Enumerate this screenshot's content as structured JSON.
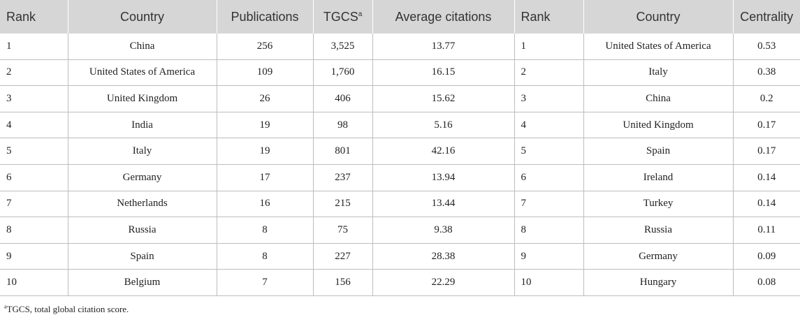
{
  "table": {
    "headers": {
      "rank1": "Rank",
      "country1": "Country",
      "publications": "Publications",
      "tgcs": "TGCS",
      "tgcs_note": "a",
      "avg_citations": "Average citations",
      "rank2": "Rank",
      "country2": "Country",
      "centrality": "Centrality"
    },
    "rows": [
      {
        "rank1": "1",
        "country1": "China",
        "publications": "256",
        "tgcs": "3,525",
        "avg": "13.77",
        "rank2": "1",
        "country2": "United States of America",
        "centrality": "0.53"
      },
      {
        "rank1": "2",
        "country1": "United States of America",
        "publications": "109",
        "tgcs": "1,760",
        "avg": "16.15",
        "rank2": "2",
        "country2": "Italy",
        "centrality": "0.38"
      },
      {
        "rank1": "3",
        "country1": "United Kingdom",
        "publications": "26",
        "tgcs": "406",
        "avg": "15.62",
        "rank2": "3",
        "country2": "China",
        "centrality": "0.2"
      },
      {
        "rank1": "4",
        "country1": "India",
        "publications": "19",
        "tgcs": "98",
        "avg": "5.16",
        "rank2": "4",
        "country2": "United Kingdom",
        "centrality": "0.17"
      },
      {
        "rank1": "5",
        "country1": "Italy",
        "publications": "19",
        "tgcs": "801",
        "avg": "42.16",
        "rank2": "5",
        "country2": "Spain",
        "centrality": "0.17"
      },
      {
        "rank1": "6",
        "country1": "Germany",
        "publications": "17",
        "tgcs": "237",
        "avg": "13.94",
        "rank2": "6",
        "country2": "Ireland",
        "centrality": "0.14"
      },
      {
        "rank1": "7",
        "country1": "Netherlands",
        "publications": "16",
        "tgcs": "215",
        "avg": "13.44",
        "rank2": "7",
        "country2": "Turkey",
        "centrality": "0.14"
      },
      {
        "rank1": "8",
        "country1": "Russia",
        "publications": "8",
        "tgcs": "75",
        "avg": "9.38",
        "rank2": "8",
        "country2": "Russia",
        "centrality": "0.11"
      },
      {
        "rank1": "9",
        "country1": "Spain",
        "publications": "8",
        "tgcs": "227",
        "avg": "28.38",
        "rank2": "9",
        "country2": "Germany",
        "centrality": "0.09"
      },
      {
        "rank1": "10",
        "country1": "Belgium",
        "publications": "7",
        "tgcs": "156",
        "avg": "22.29",
        "rank2": "10",
        "country2": "Hungary",
        "centrality": "0.08"
      }
    ]
  },
  "footnote": {
    "marker": "a",
    "text": "TGCS, total global citation score."
  }
}
